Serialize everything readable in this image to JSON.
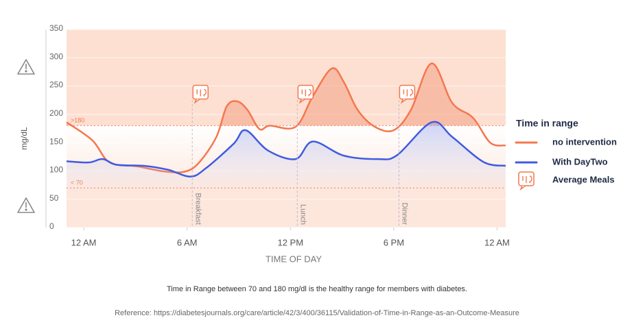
{
  "chart_data": {
    "type": "line",
    "ylabel": "mg/dL",
    "xlabel": "TIME OF DAY",
    "legend_title": "Time in range",
    "meal_legend": "Average Meals",
    "caption": "Time in Range between 70 and 180 mg/dl is the healthy range for members with diabetes.",
    "reference": "Reference: https://diabetesjournals.org/care/article/42/3/400/36115/Validation-of-Time-in-Range-as-an-Outcome-Measure",
    "xlim": [
      -1,
      24.5
    ],
    "xticks": [
      {
        "value": 0,
        "label": "12 AM"
      },
      {
        "value": 6,
        "label": "6 AM"
      },
      {
        "value": 12,
        "label": "12 PM"
      },
      {
        "value": 18,
        "label": "6 PM"
      },
      {
        "value": 24,
        "label": "12 AM"
      }
    ],
    "ylim": [
      0,
      350
    ],
    "yticks": [
      0,
      50,
      100,
      150,
      200,
      250,
      300,
      350
    ],
    "grid": true,
    "thresholds": [
      {
        "value": 180,
        "label": ">180"
      },
      {
        "value": 70,
        "label": "< 70"
      }
    ],
    "meals": [
      {
        "label": "Breakfast",
        "x": 6.3
      },
      {
        "label": "Lunch",
        "x": 12.4
      },
      {
        "label": "Dinner",
        "x": 18.3
      }
    ],
    "series": [
      {
        "name": "no intervention",
        "color": "#f4774f",
        "x": [
          -1,
          0.5,
          1.5,
          3.1,
          4.7,
          5.9,
          6.7,
          7.7,
          8.3,
          8.9,
          9.5,
          10.2,
          10.8,
          12.3,
          13.3,
          14.4,
          15.1,
          15.9,
          16.9,
          18.0,
          19.0,
          20.2,
          21.4,
          22.6,
          23.6,
          24.5
        ],
        "values": [
          186,
          154,
          115,
          108,
          99,
          99,
          115,
          160,
          214,
          223,
          208,
          174,
          180,
          178,
          232,
          281,
          257,
          208,
          178,
          172,
          208,
          290,
          220,
          194,
          150,
          145
        ]
      },
      {
        "name": "With DayTwo",
        "color": "#3f5be0",
        "x": [
          -1,
          0.3,
          1.1,
          1.9,
          3.5,
          4.9,
          6.2,
          7.1,
          8.7,
          9.4,
          10.7,
          12.3,
          13.3,
          15.1,
          17.1,
          18.2,
          20.2,
          21.4,
          23.2,
          24.5
        ],
        "values": [
          117,
          115,
          121,
          111,
          109,
          102,
          90,
          105,
          148,
          172,
          136,
          121,
          152,
          127,
          121,
          128,
          186,
          160,
          116,
          109
        ]
      }
    ]
  }
}
